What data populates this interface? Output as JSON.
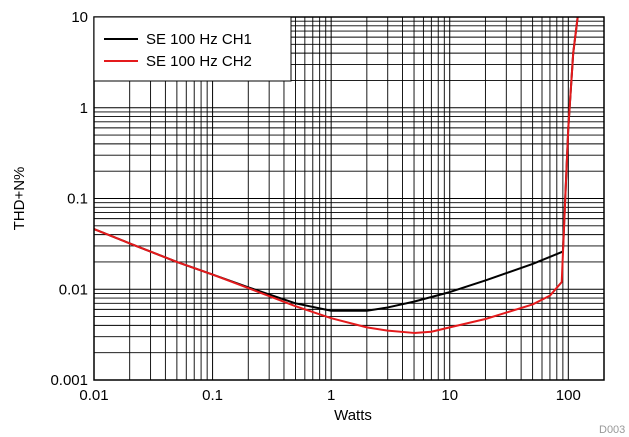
{
  "chart_data": {
    "type": "line",
    "xlabel": "Watts",
    "ylabel": "THD+N%",
    "xscale": "log",
    "yscale": "log",
    "xlim": [
      0.01,
      200
    ],
    "ylim": [
      0.001,
      10
    ],
    "grid": true,
    "legend_position": "top-left",
    "x_tick_labels": [
      "0.01",
      "0.1",
      "1",
      "10",
      "100"
    ],
    "y_tick_labels": [
      "0.001",
      "0.01",
      "0.1",
      "1",
      "10"
    ],
    "footnote": "D003",
    "series": [
      {
        "name": "SE 100 Hz CH1",
        "color": "#000000",
        "points": [
          [
            0.01,
            0.046
          ],
          [
            0.02,
            0.032
          ],
          [
            0.05,
            0.02
          ],
          [
            0.1,
            0.0145
          ],
          [
            0.2,
            0.0105
          ],
          [
            0.5,
            0.007
          ],
          [
            1,
            0.0058
          ],
          [
            2,
            0.0058
          ],
          [
            3,
            0.0063
          ],
          [
            5,
            0.0073
          ],
          [
            10,
            0.0093
          ],
          [
            20,
            0.0125
          ],
          [
            50,
            0.019
          ],
          [
            90,
            0.026
          ],
          [
            100,
            0.6
          ],
          [
            110,
            4
          ],
          [
            120,
            10
          ]
        ]
      },
      {
        "name": "SE 100 Hz CH2",
        "color": "#e41a1c",
        "points": [
          [
            0.01,
            0.046
          ],
          [
            0.02,
            0.032
          ],
          [
            0.05,
            0.02
          ],
          [
            0.1,
            0.0145
          ],
          [
            0.2,
            0.0103
          ],
          [
            0.5,
            0.0065
          ],
          [
            1,
            0.0048
          ],
          [
            2,
            0.0038
          ],
          [
            3,
            0.0035
          ],
          [
            5,
            0.0033
          ],
          [
            7,
            0.0034
          ],
          [
            10,
            0.0038
          ],
          [
            20,
            0.0047
          ],
          [
            50,
            0.0068
          ],
          [
            70,
            0.0085
          ],
          [
            88,
            0.012
          ],
          [
            100,
            0.6
          ],
          [
            110,
            4
          ],
          [
            120,
            10
          ]
        ]
      }
    ]
  }
}
